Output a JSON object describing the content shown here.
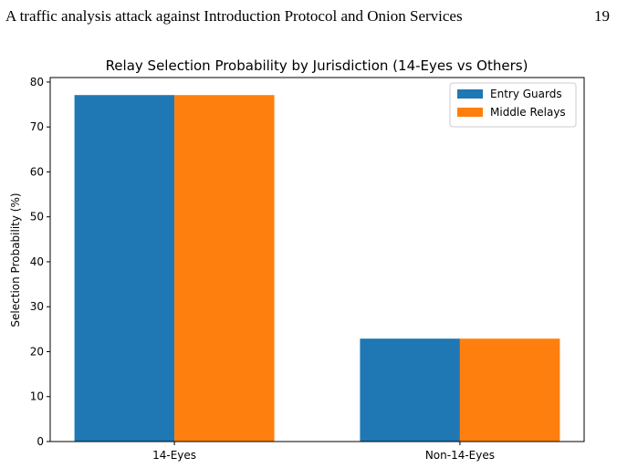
{
  "header": {
    "title": "A traffic analysis attack against Introduction Protocol and Onion Services",
    "page_number": "19"
  },
  "chart_data": {
    "type": "bar",
    "title": "Relay Selection Probability by Jurisdiction (14-Eyes vs Others)",
    "y_label": "Selection Probability (%)",
    "categories": [
      "14-Eyes",
      "Non-14-Eyes"
    ],
    "series": [
      {
        "name": "Entry Guards",
        "color": "#1f77b4",
        "values": [
          77.1,
          22.9
        ]
      },
      {
        "name": "Middle Relays",
        "color": "#ff7f0e",
        "values": [
          77.1,
          22.9
        ]
      }
    ],
    "ylim": [
      0,
      81
    ],
    "yticks": [
      0,
      10,
      20,
      30,
      40,
      50,
      60,
      70,
      80
    ],
    "legend": "upper right"
  }
}
